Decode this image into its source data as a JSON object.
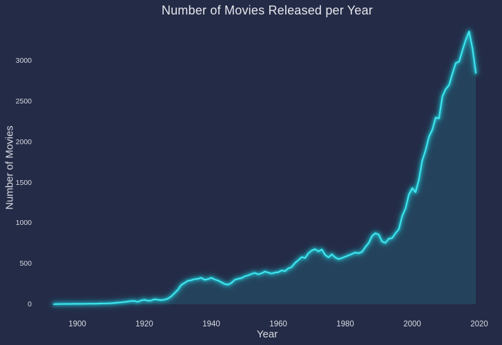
{
  "chart_data": {
    "type": "area",
    "title": "Number of Movies Released per Year",
    "xlabel": "Year",
    "ylabel": "Number of Movies",
    "xticks": [
      1900,
      1920,
      1940,
      1960,
      1980,
      2000,
      2020
    ],
    "yticks": [
      0,
      500,
      1000,
      1500,
      2000,
      2500,
      3000
    ],
    "xlim": [
      1893,
      2021
    ],
    "ylim": [
      0,
      3400
    ],
    "grid": false,
    "legend": "none",
    "colors": {
      "background": "#242b47",
      "line": "#3ee4ee",
      "line_glow": "#1fd2de",
      "fill": "rgba(43, 224, 236, 0.13)",
      "title_text": "#e6e7ec",
      "tick_text": "#d9dbe2"
    },
    "years": [
      1893,
      1894,
      1895,
      1896,
      1897,
      1898,
      1899,
      1900,
      1901,
      1902,
      1903,
      1904,
      1905,
      1906,
      1907,
      1908,
      1909,
      1910,
      1911,
      1912,
      1913,
      1914,
      1915,
      1916,
      1917,
      1918,
      1919,
      1920,
      1921,
      1922,
      1923,
      1924,
      1925,
      1926,
      1927,
      1928,
      1929,
      1930,
      1931,
      1932,
      1933,
      1934,
      1935,
      1936,
      1937,
      1938,
      1939,
      1940,
      1941,
      1942,
      1943,
      1944,
      1945,
      1946,
      1947,
      1948,
      1949,
      1950,
      1951,
      1952,
      1953,
      1954,
      1955,
      1956,
      1957,
      1958,
      1959,
      1960,
      1961,
      1962,
      1963,
      1964,
      1965,
      1966,
      1967,
      1968,
      1969,
      1970,
      1971,
      1972,
      1973,
      1974,
      1975,
      1976,
      1977,
      1978,
      1979,
      1980,
      1981,
      1982,
      1983,
      1984,
      1985,
      1986,
      1987,
      1988,
      1989,
      1990,
      1991,
      1992,
      1993,
      1994,
      1995,
      1996,
      1997,
      1998,
      1999,
      2000,
      2001,
      2002,
      2003,
      2004,
      2005,
      2006,
      2007,
      2008,
      2009,
      2010,
      2011,
      2012,
      2013,
      2014,
      2015,
      2016,
      2017,
      2018,
      2019
    ],
    "values": [
      2,
      3,
      3,
      4,
      4,
      4,
      5,
      5,
      5,
      6,
      6,
      7,
      7,
      8,
      9,
      10,
      11,
      13,
      16,
      20,
      24,
      28,
      34,
      40,
      42,
      30,
      46,
      56,
      44,
      46,
      62,
      56,
      51,
      57,
      70,
      96,
      136,
      178,
      238,
      263,
      289,
      297,
      310,
      314,
      327,
      302,
      310,
      327,
      306,
      293,
      272,
      250,
      242,
      263,
      302,
      314,
      323,
      344,
      357,
      374,
      387,
      370,
      382,
      404,
      391,
      378,
      391,
      395,
      417,
      408,
      442,
      459,
      510,
      544,
      582,
      569,
      629,
      663,
      680,
      650,
      676,
      608,
      578,
      616,
      578,
      557,
      570,
      586,
      603,
      620,
      637,
      629,
      646,
      705,
      756,
      841,
      875,
      858,
      773,
      756,
      807,
      816,
      875,
      926,
      1088,
      1182,
      1350,
      1430,
      1380,
      1540,
      1770,
      1900,
      2065,
      2150,
      2300,
      2290,
      2560,
      2650,
      2700,
      2840,
      2970,
      2990,
      3130,
      3260,
      3360,
      3150,
      2850
    ]
  }
}
